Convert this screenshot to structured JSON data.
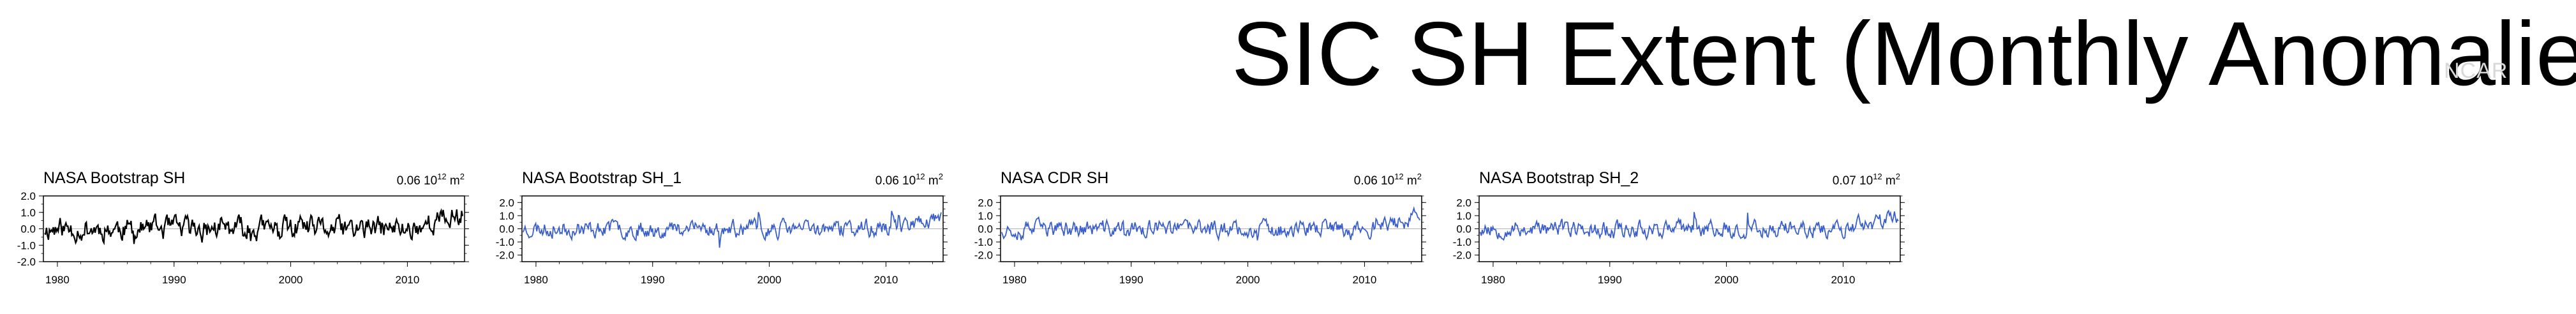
{
  "page": {
    "title": "SIC SH Extent (Monthly Anomalies)",
    "watermark": "NCAR"
  },
  "chart_data": [
    {
      "type": "line",
      "title": "NASA Bootstrap SH",
      "stat": "0.06",
      "unit_base": "10",
      "unit_exp": "12",
      "unit_tail": "m",
      "unit_tail_exp": "2",
      "line_color": "#000000",
      "xlim": [
        1978.8,
        2014.9
      ],
      "ylim": [
        -2.0,
        2.0
      ],
      "x_ticks": [
        1980,
        1990,
        2000,
        2010
      ],
      "x_tick_labels": [
        "1980",
        "1990",
        "2000",
        "2010"
      ],
      "y_ticks": [
        2.0,
        1.0,
        0.0,
        -1.0,
        -2.0
      ],
      "y_tick_labels": [
        "2.0",
        "1.0",
        "0.0",
        "-1.0",
        "-2.0"
      ],
      "series": [
        {
          "seed": 11,
          "amplitude": 0.55
        }
      ]
    },
    {
      "type": "line",
      "title": "NASA Bootstrap SH_1",
      "stat": "0.06",
      "unit_base": "10",
      "unit_exp": "12",
      "unit_tail": "m",
      "unit_tail_exp": "2",
      "line_color": "#3a5fcd",
      "xlim": [
        1978.8,
        2014.9
      ],
      "ylim": [
        -2.5,
        2.5
      ],
      "x_ticks": [
        1980,
        1990,
        2000,
        2010
      ],
      "x_tick_labels": [
        "1980",
        "1990",
        "2000",
        "2010"
      ],
      "y_ticks": [
        2.0,
        1.0,
        0.0,
        -1.0,
        -2.0
      ],
      "y_tick_labels": [
        "2.0",
        "1.0",
        "0.0",
        "-1.0",
        "-2.0"
      ],
      "series": [
        {
          "seed": 23,
          "amplitude": 0.5
        }
      ]
    },
    {
      "type": "line",
      "title": "NASA CDR SH",
      "stat": "0.06",
      "unit_base": "10",
      "unit_exp": "12",
      "unit_tail": "m",
      "unit_tail_exp": "2",
      "line_color": "#3a5fcd",
      "xlim": [
        1978.8,
        2014.9
      ],
      "ylim": [
        -2.5,
        2.5
      ],
      "x_ticks": [
        1980,
        1990,
        2000,
        2010
      ],
      "x_tick_labels": [
        "1980",
        "1990",
        "2000",
        "2010"
      ],
      "y_ticks": [
        2.0,
        1.0,
        0.0,
        -1.0,
        -2.0
      ],
      "y_tick_labels": [
        "2.0",
        "1.0",
        "0.0",
        "-1.0",
        "-2.0"
      ],
      "series": [
        {
          "seed": 37,
          "amplitude": 0.5
        }
      ]
    },
    {
      "type": "line",
      "title": "NASA Bootstrap SH_2",
      "stat": "0.07",
      "unit_base": "10",
      "unit_exp": "12",
      "unit_tail": "m",
      "unit_tail_exp": "2",
      "line_color": "#3a5fcd",
      "xlim": [
        1978.8,
        2014.9
      ],
      "ylim": [
        -2.5,
        2.5
      ],
      "x_ticks": [
        1980,
        1990,
        2000,
        2010
      ],
      "x_tick_labels": [
        "1980",
        "1990",
        "2000",
        "2010"
      ],
      "y_ticks": [
        2.0,
        1.0,
        0.0,
        -1.0,
        -2.0
      ],
      "y_tick_labels": [
        "2.0",
        "1.0",
        "0.0",
        "-1.0",
        "-2.0"
      ],
      "series": [
        {
          "seed": 53,
          "amplitude": 0.5
        }
      ]
    }
  ]
}
